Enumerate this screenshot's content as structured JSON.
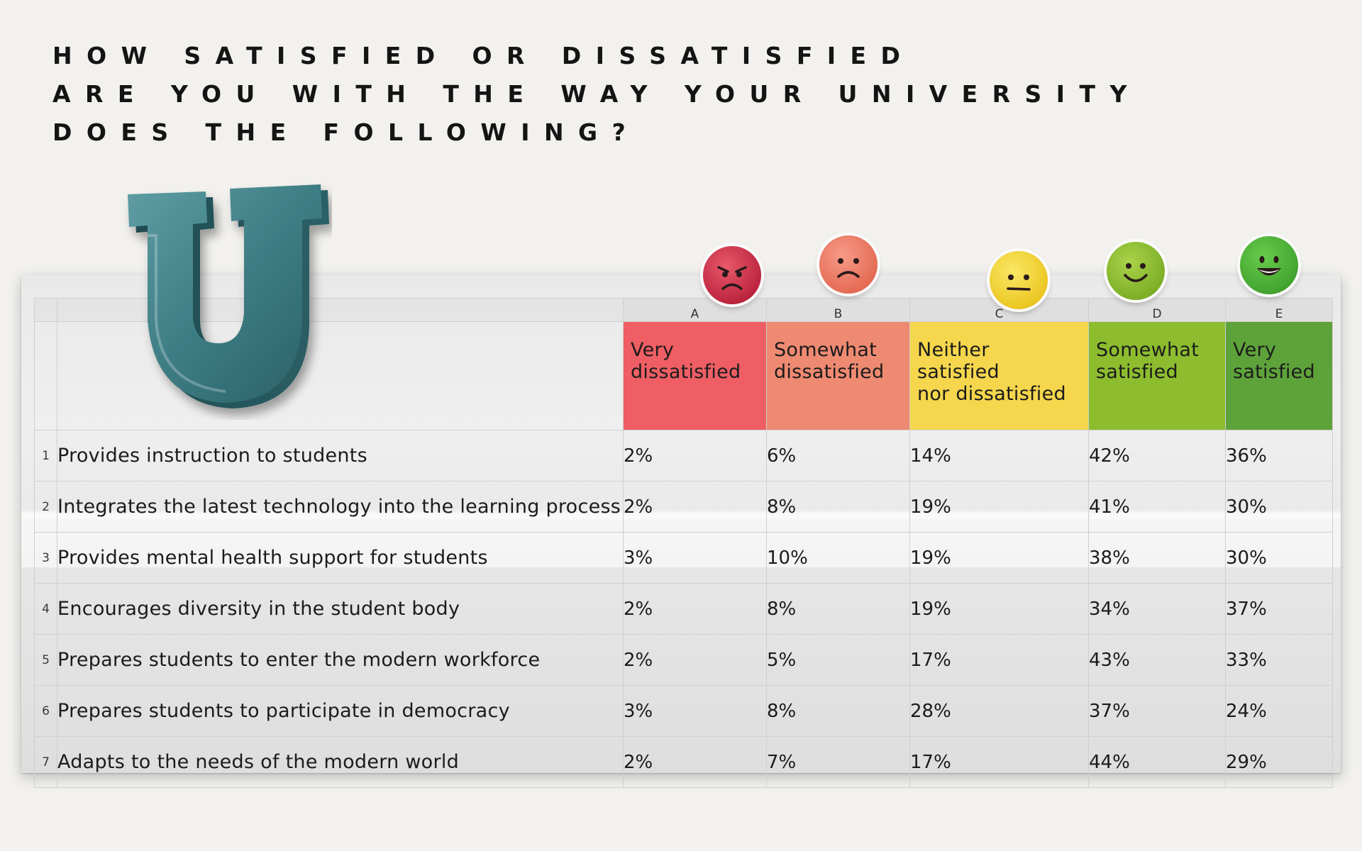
{
  "title_lines": [
    "HOW SATISFIED OR DISSATISFIED",
    "ARE YOU WITH THE WAY YOUR UNIVERSITY",
    "DOES THE FOLLOWING?"
  ],
  "logo_letter": "U",
  "columns": {
    "letters": [
      "A",
      "B",
      "C",
      "D",
      "E"
    ],
    "labels": [
      [
        "Very",
        "dissatisfied"
      ],
      [
        "Somewhat",
        "dissatisfied"
      ],
      [
        "Neither",
        "satisfied",
        "nor dissatisfied"
      ],
      [
        "Somewhat",
        "satisfied"
      ],
      [
        "Very",
        "satisfied"
      ]
    ],
    "colors": [
      "#ee5e64",
      "#ef8a72",
      "#f5d64c",
      "#8dbd2f",
      "#5ea33a"
    ],
    "icons": [
      "angry-face-icon",
      "sad-face-icon",
      "neutral-face-icon",
      "smiling-face-icon",
      "grinning-face-icon"
    ]
  },
  "rows": [
    {
      "num": "1",
      "label": "Provides instruction to students",
      "values": [
        "2%",
        "6%",
        "14%",
        "42%",
        "36%"
      ]
    },
    {
      "num": "2",
      "label": "Integrates the latest technology into the learning process",
      "values": [
        "2%",
        "8%",
        "19%",
        "41%",
        "30%"
      ]
    },
    {
      "num": "3",
      "label": "Provides mental health support for students",
      "values": [
        "3%",
        "10%",
        "19%",
        "38%",
        "30%"
      ]
    },
    {
      "num": "4",
      "label": "Encourages diversity in the student body",
      "values": [
        "2%",
        "8%",
        "19%",
        "34%",
        "37%"
      ]
    },
    {
      "num": "5",
      "label": "Prepares students to enter the modern workforce",
      "values": [
        "2%",
        "5%",
        "17%",
        "43%",
        "33%"
      ]
    },
    {
      "num": "6",
      "label": "Prepares students to participate in democracy",
      "values": [
        "3%",
        "8%",
        "28%",
        "37%",
        "24%"
      ]
    },
    {
      "num": "7",
      "label": "Adapts to the needs of the modern world",
      "values": [
        "2%",
        "7%",
        "17%",
        "44%",
        "29%"
      ]
    }
  ],
  "chart_data": {
    "type": "table",
    "title": "HOW SATISFIED OR DISSATISFIED ARE YOU WITH THE WAY YOUR UNIVERSITY DOES THE FOLLOWING?",
    "columns": [
      "Very dissatisfied",
      "Somewhat dissatisfied",
      "Neither satisfied nor dissatisfied",
      "Somewhat satisfied",
      "Very satisfied"
    ],
    "categories": [
      "Provides instruction to students",
      "Integrates the latest technology into the learning process",
      "Provides mental health support for students",
      "Encourages diversity in the student body",
      "Prepares students to enter the modern workforce",
      "Prepares students to participate in democracy",
      "Adapts to the needs of the modern world"
    ],
    "series": [
      {
        "name": "Very dissatisfied",
        "values": [
          2,
          2,
          3,
          2,
          2,
          3,
          2
        ]
      },
      {
        "name": "Somewhat dissatisfied",
        "values": [
          6,
          8,
          10,
          8,
          5,
          8,
          7
        ]
      },
      {
        "name": "Neither satisfied nor dissatisfied",
        "values": [
          14,
          19,
          19,
          19,
          17,
          28,
          17
        ]
      },
      {
        "name": "Somewhat satisfied",
        "values": [
          42,
          41,
          38,
          34,
          43,
          37,
          44
        ]
      },
      {
        "name": "Very satisfied",
        "values": [
          36,
          30,
          30,
          37,
          33,
          24,
          29
        ]
      }
    ],
    "unit": "%"
  }
}
